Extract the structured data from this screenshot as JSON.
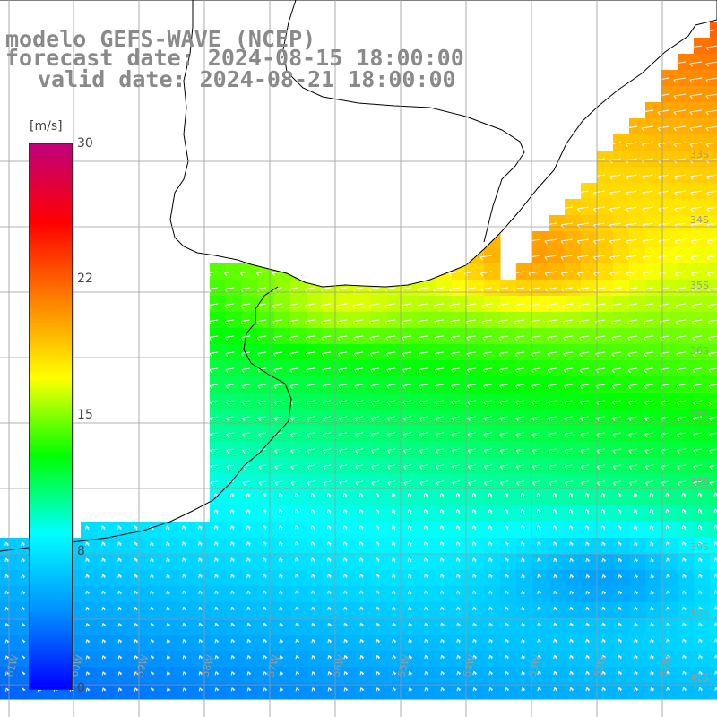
{
  "title": {
    "line1": "modelo GEFS-WAVE (NCEP)",
    "line2": "forecast date: 2024-08-15 18:00:00",
    "line3": "valid date: 2024-08-21 18:00:00"
  },
  "colorbar": {
    "unit": "[m/s]",
    "ticks": [
      "30",
      "22",
      "15",
      "8",
      "0"
    ],
    "tick_values": [
      30,
      22,
      15,
      8,
      0
    ],
    "range": [
      0,
      30
    ],
    "colors": [
      "#0000ff",
      "#0090ff",
      "#00ffff",
      "#00ff00",
      "#ffff00",
      "#ff8000",
      "#ff0000",
      "#c0007a"
    ]
  },
  "lat_labels": [
    "33S",
    "34S",
    "35S",
    "36S",
    "37S",
    "38S",
    "39S",
    "40S",
    "41S"
  ],
  "lon_labels": [
    "61W",
    "60W",
    "59W",
    "58W",
    "57W",
    "56W",
    "55W",
    "54W",
    "53W",
    "52W",
    "51W"
  ],
  "colors": {
    "land": "#ffffff",
    "coast": "#000000",
    "grid": "#9a9a9a",
    "arrows": "#ffffff",
    "title": "#8a8a8a"
  }
}
